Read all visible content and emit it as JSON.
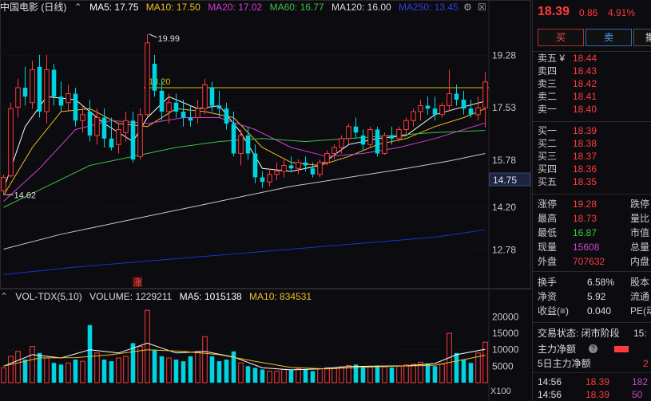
{
  "header": {
    "symbol_title": "中国电影 (日线)",
    "ma5": "MA5: 17.75",
    "ma10": "MA10: 17.50",
    "ma20": "MA20: 17.02",
    "ma60": "MA60: 16.77",
    "ma120": "MA120: 16.00",
    "ma250": "MA250: 13.45"
  },
  "price_axis": {
    "ticks": [
      "19.28",
      "17.53",
      "15.78",
      "14.20",
      "12.78"
    ],
    "current_tag": "14.75"
  },
  "annotations": {
    "high_label": "19.99",
    "low_label": "14.62",
    "level_label": "18.20",
    "zhang_marker": "涨"
  },
  "volume": {
    "header_name": "VOL-TDX(5,10)",
    "header_volume": "VOLUME: 1229211",
    "header_ma5": "MA5: 1015138",
    "header_ma10": "MA10: 834531",
    "ticks": [
      "20000",
      "15000",
      "10000",
      "5000"
    ],
    "unit": "X100"
  },
  "quote": {
    "price": "18.39",
    "change": "0.86",
    "pct": "4.91%",
    "buy_label": "买",
    "sell_label": "卖",
    "cancel_label": "撤"
  },
  "orderbook": {
    "asks": [
      {
        "label": "卖五 ¥",
        "price": "18.44"
      },
      {
        "label": "卖四",
        "price": "18.43"
      },
      {
        "label": "卖三",
        "price": "18.42"
      },
      {
        "label": "卖二",
        "price": "18.41"
      },
      {
        "label": "卖一",
        "price": "18.40"
      }
    ],
    "bids": [
      {
        "label": "买一",
        "price": "18.39"
      },
      {
        "label": "买二",
        "price": "18.38"
      },
      {
        "label": "买三",
        "price": "18.37"
      },
      {
        "label": "买四",
        "price": "18.36"
      },
      {
        "label": "买五",
        "price": "18.35"
      }
    ]
  },
  "stats": [
    {
      "l1": "涨停",
      "v1": "19.28",
      "c": "#ff3b3b",
      "l2": "跌停"
    },
    {
      "l1": "最高",
      "v1": "18.73",
      "c": "#ff3b3b",
      "l2": "量比"
    },
    {
      "l1": "最低",
      "v1": "16.87",
      "c": "#33cc33",
      "l2": "市值"
    },
    {
      "l1": "现量",
      "v1": "15608",
      "c": "#cc44cc",
      "l2": "总量"
    },
    {
      "l1": "外盘",
      "v1": "707632",
      "c": "#ff3b3b",
      "l2": "内盘"
    }
  ],
  "stats2": [
    {
      "l1": "换手",
      "v1": "6.58%",
      "c": "#dddddd",
      "l2": "股本"
    },
    {
      "l1": "净资",
      "v1": "5.92",
      "c": "#dddddd",
      "l2": "流通"
    },
    {
      "l1": "收益(≡)",
      "v1": "0.040",
      "c": "#dddddd",
      "l2": "PE(动"
    }
  ],
  "trade_status": {
    "label": "交易状态: 闭市阶段",
    "time": "15:"
  },
  "flows": [
    {
      "label": "主力净额",
      "value": ""
    },
    {
      "label": "5日主力净额",
      "value": "2"
    }
  ],
  "ticks_list": [
    {
      "time": "14:56",
      "price": "18.39",
      "vol": "182"
    },
    {
      "time": "14:56",
      "price": "18.39",
      "vol": "50"
    }
  ],
  "chart_data": {
    "type": "candlestick",
    "title": "中国电影 (日线)",
    "ylim": [
      11.8,
      20.6
    ],
    "level_line": 18.2,
    "candles": [
      {
        "o": 14.75,
        "h": 15.3,
        "l": 14.62,
        "c": 15.2
      },
      {
        "o": 15.25,
        "h": 17.7,
        "l": 15.2,
        "c": 17.5
      },
      {
        "o": 17.55,
        "h": 18.5,
        "l": 17.2,
        "c": 18.2
      },
      {
        "o": 18.2,
        "h": 18.9,
        "l": 17.6,
        "c": 17.9
      },
      {
        "o": 17.7,
        "h": 19.1,
        "l": 17.5,
        "c": 18.8
      },
      {
        "o": 18.9,
        "h": 19.3,
        "l": 17.2,
        "c": 17.4
      },
      {
        "o": 17.4,
        "h": 19.3,
        "l": 17.0,
        "c": 18.8
      },
      {
        "o": 18.8,
        "h": 19.0,
        "l": 17.6,
        "c": 17.9
      },
      {
        "o": 17.9,
        "h": 18.4,
        "l": 17.4,
        "c": 17.6
      },
      {
        "o": 17.7,
        "h": 18.3,
        "l": 17.4,
        "c": 18.0
      },
      {
        "o": 18.0,
        "h": 18.2,
        "l": 16.9,
        "c": 17.1
      },
      {
        "o": 17.1,
        "h": 17.6,
        "l": 16.7,
        "c": 17.3
      },
      {
        "o": 17.4,
        "h": 17.8,
        "l": 16.4,
        "c": 16.6
      },
      {
        "o": 16.6,
        "h": 17.5,
        "l": 16.3,
        "c": 17.2
      },
      {
        "o": 17.2,
        "h": 17.5,
        "l": 16.2,
        "c": 16.5
      },
      {
        "o": 16.5,
        "h": 17.2,
        "l": 16.1,
        "c": 16.2
      },
      {
        "o": 16.3,
        "h": 17.0,
        "l": 16.0,
        "c": 16.8
      },
      {
        "o": 16.7,
        "h": 17.4,
        "l": 16.4,
        "c": 17.1
      },
      {
        "o": 17.1,
        "h": 17.4,
        "l": 15.7,
        "c": 15.8
      },
      {
        "o": 15.9,
        "h": 17.5,
        "l": 15.8,
        "c": 17.3
      },
      {
        "o": 17.3,
        "h": 19.99,
        "l": 17.2,
        "c": 19.7
      },
      {
        "o": 19.0,
        "h": 19.3,
        "l": 17.9,
        "c": 18.1
      },
      {
        "o": 18.1,
        "h": 18.5,
        "l": 17.1,
        "c": 17.4
      },
      {
        "o": 17.4,
        "h": 18.0,
        "l": 17.0,
        "c": 17.7
      },
      {
        "o": 17.7,
        "h": 18.0,
        "l": 17.2,
        "c": 17.4
      },
      {
        "o": 17.4,
        "h": 17.8,
        "l": 16.9,
        "c": 17.2
      },
      {
        "o": 17.2,
        "h": 17.6,
        "l": 16.9,
        "c": 17.1
      },
      {
        "o": 17.2,
        "h": 17.8,
        "l": 17.0,
        "c": 17.5
      },
      {
        "o": 17.5,
        "h": 18.5,
        "l": 17.3,
        "c": 18.3
      },
      {
        "o": 18.2,
        "h": 18.4,
        "l": 17.4,
        "c": 17.6
      },
      {
        "o": 17.6,
        "h": 18.1,
        "l": 17.2,
        "c": 17.5
      },
      {
        "o": 17.5,
        "h": 17.7,
        "l": 16.8,
        "c": 17.0
      },
      {
        "o": 17.0,
        "h": 17.4,
        "l": 15.9,
        "c": 16.0
      },
      {
        "o": 16.0,
        "h": 16.8,
        "l": 15.6,
        "c": 16.6
      },
      {
        "o": 16.6,
        "h": 16.9,
        "l": 15.8,
        "c": 16.0
      },
      {
        "o": 16.0,
        "h": 16.3,
        "l": 15.0,
        "c": 15.2
      },
      {
        "o": 15.2,
        "h": 15.4,
        "l": 14.85,
        "c": 15.05
      },
      {
        "o": 15.05,
        "h": 15.5,
        "l": 14.9,
        "c": 15.3
      },
      {
        "o": 15.3,
        "h": 15.7,
        "l": 15.1,
        "c": 15.4
      },
      {
        "o": 15.4,
        "h": 15.8,
        "l": 15.2,
        "c": 15.6
      },
      {
        "o": 15.6,
        "h": 15.9,
        "l": 15.4,
        "c": 15.5
      },
      {
        "o": 15.5,
        "h": 15.8,
        "l": 15.3,
        "c": 15.7
      },
      {
        "o": 15.7,
        "h": 15.9,
        "l": 15.4,
        "c": 15.6
      },
      {
        "o": 15.5,
        "h": 15.7,
        "l": 15.2,
        "c": 15.3
      },
      {
        "o": 15.3,
        "h": 15.8,
        "l": 15.2,
        "c": 15.7
      },
      {
        "o": 15.7,
        "h": 16.1,
        "l": 15.6,
        "c": 16.0
      },
      {
        "o": 16.0,
        "h": 16.3,
        "l": 15.8,
        "c": 16.2
      },
      {
        "o": 16.2,
        "h": 16.6,
        "l": 16.0,
        "c": 16.5
      },
      {
        "o": 16.5,
        "h": 17.0,
        "l": 16.3,
        "c": 16.9
      },
      {
        "o": 16.9,
        "h": 17.2,
        "l": 16.5,
        "c": 16.7
      },
      {
        "o": 16.6,
        "h": 16.8,
        "l": 16.1,
        "c": 16.3
      },
      {
        "o": 16.3,
        "h": 16.9,
        "l": 16.2,
        "c": 16.8
      },
      {
        "o": 16.8,
        "h": 16.9,
        "l": 15.9,
        "c": 16.0
      },
      {
        "o": 16.0,
        "h": 16.7,
        "l": 15.95,
        "c": 16.6
      },
      {
        "o": 16.6,
        "h": 16.9,
        "l": 16.3,
        "c": 16.5
      },
      {
        "o": 16.5,
        "h": 16.9,
        "l": 16.4,
        "c": 16.8
      },
      {
        "o": 16.8,
        "h": 17.2,
        "l": 16.6,
        "c": 17.1
      },
      {
        "o": 17.1,
        "h": 17.5,
        "l": 16.9,
        "c": 17.4
      },
      {
        "o": 17.4,
        "h": 17.8,
        "l": 17.1,
        "c": 17.6
      },
      {
        "o": 17.6,
        "h": 17.9,
        "l": 17.3,
        "c": 17.5
      },
      {
        "o": 17.5,
        "h": 17.9,
        "l": 17.1,
        "c": 17.3
      },
      {
        "o": 17.3,
        "h": 17.7,
        "l": 17.2,
        "c": 17.6
      },
      {
        "o": 17.6,
        "h": 18.8,
        "l": 17.4,
        "c": 18.0
      },
      {
        "o": 18.0,
        "h": 18.3,
        "l": 17.6,
        "c": 17.8
      },
      {
        "o": 17.8,
        "h": 18.1,
        "l": 17.3,
        "c": 17.5
      },
      {
        "o": 17.5,
        "h": 17.8,
        "l": 17.2,
        "c": 17.3
      },
      {
        "o": 17.3,
        "h": 17.9,
        "l": 17.1,
        "c": 17.53
      },
      {
        "o": 17.53,
        "h": 18.73,
        "l": 16.87,
        "c": 18.39
      }
    ],
    "ma_lines": {
      "ma5": {
        "color": "#ffffff",
        "points": [
          [
            0,
            14.8
          ],
          [
            3,
            16.9
          ],
          [
            6,
            17.9
          ],
          [
            10,
            17.8
          ],
          [
            14,
            17.0
          ],
          [
            18,
            16.4
          ],
          [
            20,
            17.2
          ],
          [
            23,
            17.9
          ],
          [
            27,
            17.5
          ],
          [
            30,
            17.6
          ],
          [
            33,
            16.7
          ],
          [
            36,
            15.5
          ],
          [
            40,
            15.4
          ],
          [
            44,
            15.6
          ],
          [
            48,
            16.3
          ],
          [
            52,
            16.5
          ],
          [
            56,
            16.6
          ],
          [
            60,
            17.3
          ],
          [
            63,
            17.5
          ],
          [
            67,
            17.75
          ]
        ]
      },
      "ma10": {
        "color": "#f0c020",
        "points": [
          [
            0,
            14.6
          ],
          [
            4,
            16.2
          ],
          [
            8,
            17.4
          ],
          [
            12,
            17.5
          ],
          [
            16,
            17.0
          ],
          [
            20,
            16.9
          ],
          [
            24,
            17.5
          ],
          [
            28,
            17.4
          ],
          [
            32,
            17.2
          ],
          [
            36,
            16.2
          ],
          [
            40,
            15.7
          ],
          [
            44,
            15.6
          ],
          [
            48,
            15.9
          ],
          [
            52,
            16.3
          ],
          [
            56,
            16.5
          ],
          [
            60,
            16.9
          ],
          [
            64,
            17.2
          ],
          [
            67,
            17.5
          ]
        ]
      },
      "ma20": {
        "color": "#d040d0",
        "points": [
          [
            0,
            14.4
          ],
          [
            5,
            15.5
          ],
          [
            10,
            16.8
          ],
          [
            15,
            17.1
          ],
          [
            20,
            17.0
          ],
          [
            25,
            17.2
          ],
          [
            30,
            17.2
          ],
          [
            35,
            16.8
          ],
          [
            40,
            16.2
          ],
          [
            45,
            15.9
          ],
          [
            50,
            16.0
          ],
          [
            55,
            16.2
          ],
          [
            60,
            16.5
          ],
          [
            64,
            16.8
          ],
          [
            67,
            17.02
          ]
        ]
      },
      "ma60": {
        "color": "#40c040",
        "points": [
          [
            0,
            14.2
          ],
          [
            6,
            14.9
          ],
          [
            12,
            15.6
          ],
          [
            18,
            15.9
          ],
          [
            24,
            16.2
          ],
          [
            30,
            16.4
          ],
          [
            36,
            16.5
          ],
          [
            42,
            16.4
          ],
          [
            48,
            16.5
          ],
          [
            54,
            16.6
          ],
          [
            60,
            16.7
          ],
          [
            67,
            16.77
          ]
        ]
      },
      "ma120": {
        "color": "#c8c8c8",
        "points": [
          [
            0,
            12.8
          ],
          [
            8,
            13.3
          ],
          [
            16,
            13.7
          ],
          [
            24,
            14.1
          ],
          [
            32,
            14.5
          ],
          [
            40,
            14.9
          ],
          [
            48,
            15.2
          ],
          [
            56,
            15.5
          ],
          [
            62,
            15.75
          ],
          [
            67,
            16.0
          ]
        ]
      },
      "ma250": {
        "color": "#2030d0",
        "points": [
          [
            0,
            11.95
          ],
          [
            10,
            12.2
          ],
          [
            20,
            12.4
          ],
          [
            30,
            12.6
          ],
          [
            40,
            12.8
          ],
          [
            50,
            13.0
          ],
          [
            60,
            13.2
          ],
          [
            67,
            13.45
          ]
        ]
      }
    },
    "volume_ylim": [
      0,
      23000
    ],
    "volumes": [
      4500,
      8000,
      9500,
      7000,
      11000,
      9000,
      7500,
      6000,
      5500,
      6000,
      7000,
      6500,
      17500,
      9000,
      7000,
      6500,
      7500,
      8000,
      12000,
      11000,
      22000,
      10000,
      8000,
      7500,
      7000,
      6500,
      8000,
      9500,
      14000,
      8000,
      6500,
      7000,
      9500,
      6000,
      5000,
      4500,
      4000,
      3500,
      3500,
      4000,
      3800,
      4200,
      4000,
      3500,
      4200,
      4500,
      4300,
      4800,
      5200,
      5500,
      4600,
      5000,
      5200,
      4800,
      4600,
      5000,
      5400,
      5600,
      6200,
      5800,
      5000,
      5600,
      15000,
      9000,
      7000,
      6000,
      9000,
      12292
    ],
    "vol_ma_lines": {
      "vma5": {
        "color": "#ffffff",
        "points": [
          [
            0,
            5000
          ],
          [
            4,
            8500
          ],
          [
            8,
            7500
          ],
          [
            12,
            10000
          ],
          [
            16,
            9000
          ],
          [
            20,
            12000
          ],
          [
            24,
            9000
          ],
          [
            28,
            9500
          ],
          [
            32,
            7800
          ],
          [
            36,
            4500
          ],
          [
            40,
            3900
          ],
          [
            44,
            4200
          ],
          [
            48,
            4900
          ],
          [
            52,
            5000
          ],
          [
            56,
            5100
          ],
          [
            60,
            5800
          ],
          [
            63,
            8500
          ],
          [
            67,
            10151
          ]
        ]
      },
      "vma10": {
        "color": "#f0c020",
        "points": [
          [
            0,
            5000
          ],
          [
            5,
            7500
          ],
          [
            10,
            7600
          ],
          [
            15,
            8500
          ],
          [
            20,
            10000
          ],
          [
            25,
            9500
          ],
          [
            30,
            8500
          ],
          [
            35,
            6500
          ],
          [
            40,
            4600
          ],
          [
            45,
            4200
          ],
          [
            50,
            4700
          ],
          [
            55,
            5000
          ],
          [
            60,
            5300
          ],
          [
            64,
            7000
          ],
          [
            67,
            8345
          ]
        ]
      }
    }
  }
}
